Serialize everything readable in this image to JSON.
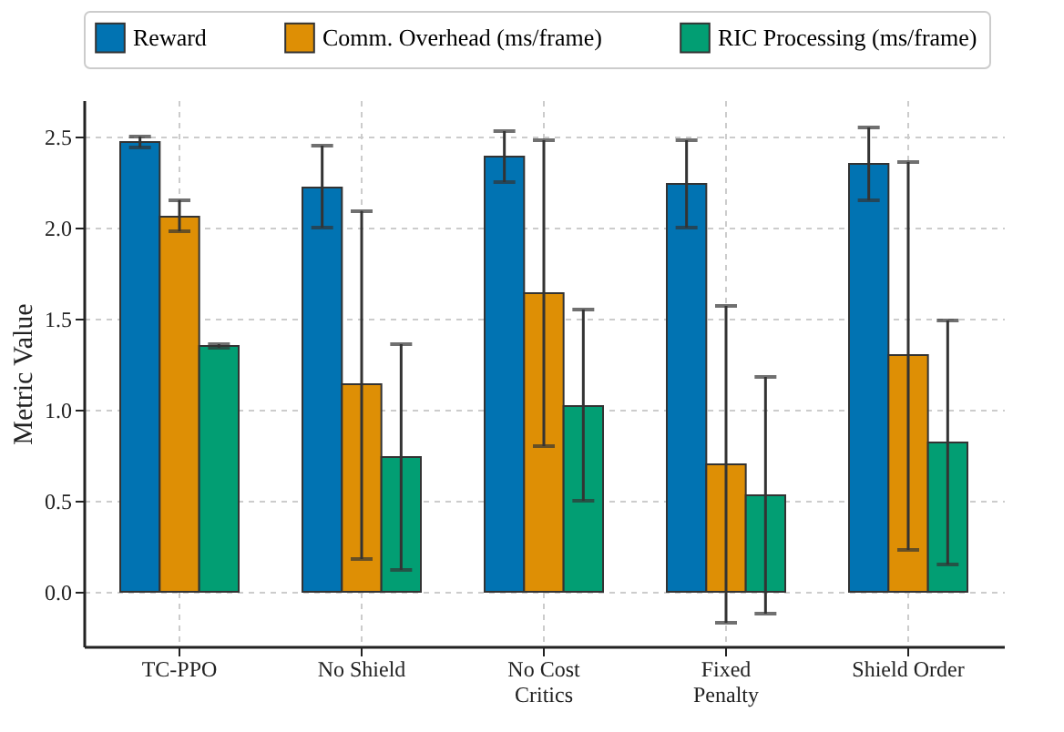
{
  "chart_data": {
    "type": "bar",
    "ylabel": "Metric Value",
    "categories": [
      "TC-PPO",
      "No Shield",
      "No Cost\nCritics",
      "Fixed\nPenalty",
      "Shield Order"
    ],
    "series": [
      {
        "name": "Reward",
        "color": "#0173b2",
        "values": [
          2.47,
          2.22,
          2.39,
          2.24,
          2.35
        ],
        "errors": [
          [
            2.44,
            2.5
          ],
          [
            2.0,
            2.45
          ],
          [
            2.25,
            2.53
          ],
          [
            2.0,
            2.48
          ],
          [
            2.15,
            2.55
          ]
        ]
      },
      {
        "name": "Comm. Overhead (ms/frame)",
        "color": "#de8f05",
        "values": [
          2.06,
          1.14,
          1.64,
          0.7,
          1.3
        ],
        "errors": [
          [
            1.98,
            2.15
          ],
          [
            0.18,
            2.09
          ],
          [
            0.8,
            2.48
          ],
          [
            -0.17,
            1.57
          ],
          [
            0.23,
            2.36
          ]
        ]
      },
      {
        "name": "RIC Processing (ms/frame)",
        "color": "#029e73",
        "values": [
          1.35,
          0.74,
          1.02,
          0.53,
          0.82
        ],
        "errors": [
          [
            1.34,
            1.36
          ],
          [
            0.12,
            1.36
          ],
          [
            0.5,
            1.55
          ],
          [
            -0.12,
            1.18
          ],
          [
            0.15,
            1.49
          ]
        ]
      }
    ],
    "ylim": [
      -0.3,
      2.7
    ],
    "yticks": [
      {
        "value": 0,
        "label": "0.0"
      },
      {
        "value": 0.5,
        "label": "0.5"
      },
      {
        "value": 1,
        "label": "1.0"
      },
      {
        "value": 1.5,
        "label": "1.5"
      },
      {
        "value": 2,
        "label": "2.0"
      },
      {
        "value": 2.5,
        "label": "2.5"
      }
    ],
    "grid": true,
    "legend": "top"
  }
}
